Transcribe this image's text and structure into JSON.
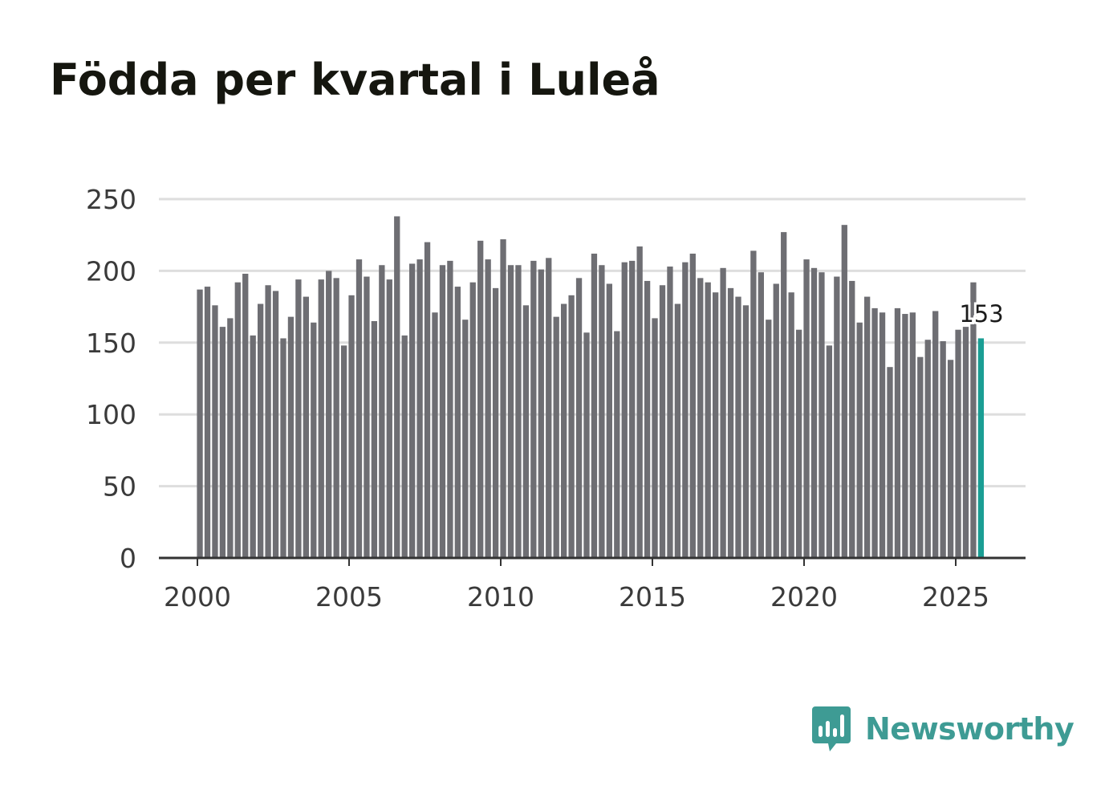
{
  "chart_data": {
    "type": "bar",
    "title": "Födda per kvartal i Luleå",
    "xlabel": "",
    "ylabel": "",
    "ylim": [
      0,
      250
    ],
    "y_ticks": [
      "0",
      "50",
      "100",
      "150",
      "200",
      "250"
    ],
    "x_ticks": [
      "2000",
      "2005",
      "2010",
      "2015",
      "2020",
      "2025"
    ],
    "start_year": 2000,
    "frequency": "quarterly",
    "grid": true,
    "highlight_label": "153",
    "bar_color": "#6e6e73",
    "highlight_color": "#1a9e94",
    "values": [
      187,
      189,
      176,
      161,
      167,
      192,
      198,
      155,
      177,
      190,
      186,
      153,
      168,
      194,
      182,
      164,
      194,
      200,
      195,
      148,
      183,
      208,
      196,
      165,
      204,
      194,
      238,
      155,
      205,
      208,
      220,
      171,
      204,
      207,
      189,
      166,
      192,
      221,
      208,
      188,
      222,
      204,
      204,
      176,
      207,
      201,
      209,
      168,
      177,
      183,
      195,
      157,
      212,
      204,
      191,
      158,
      206,
      207,
      217,
      193,
      167,
      190,
      203,
      177,
      206,
      212,
      195,
      192,
      185,
      202,
      188,
      182,
      176,
      214,
      199,
      166,
      191,
      227,
      185,
      159,
      208,
      202,
      199,
      148,
      196,
      232,
      193,
      164,
      182,
      174,
      171,
      133,
      174,
      170,
      171,
      140,
      152,
      172,
      151,
      138,
      159,
      161,
      192,
      153
    ]
  },
  "brand": {
    "name": "Newsworthy"
  }
}
